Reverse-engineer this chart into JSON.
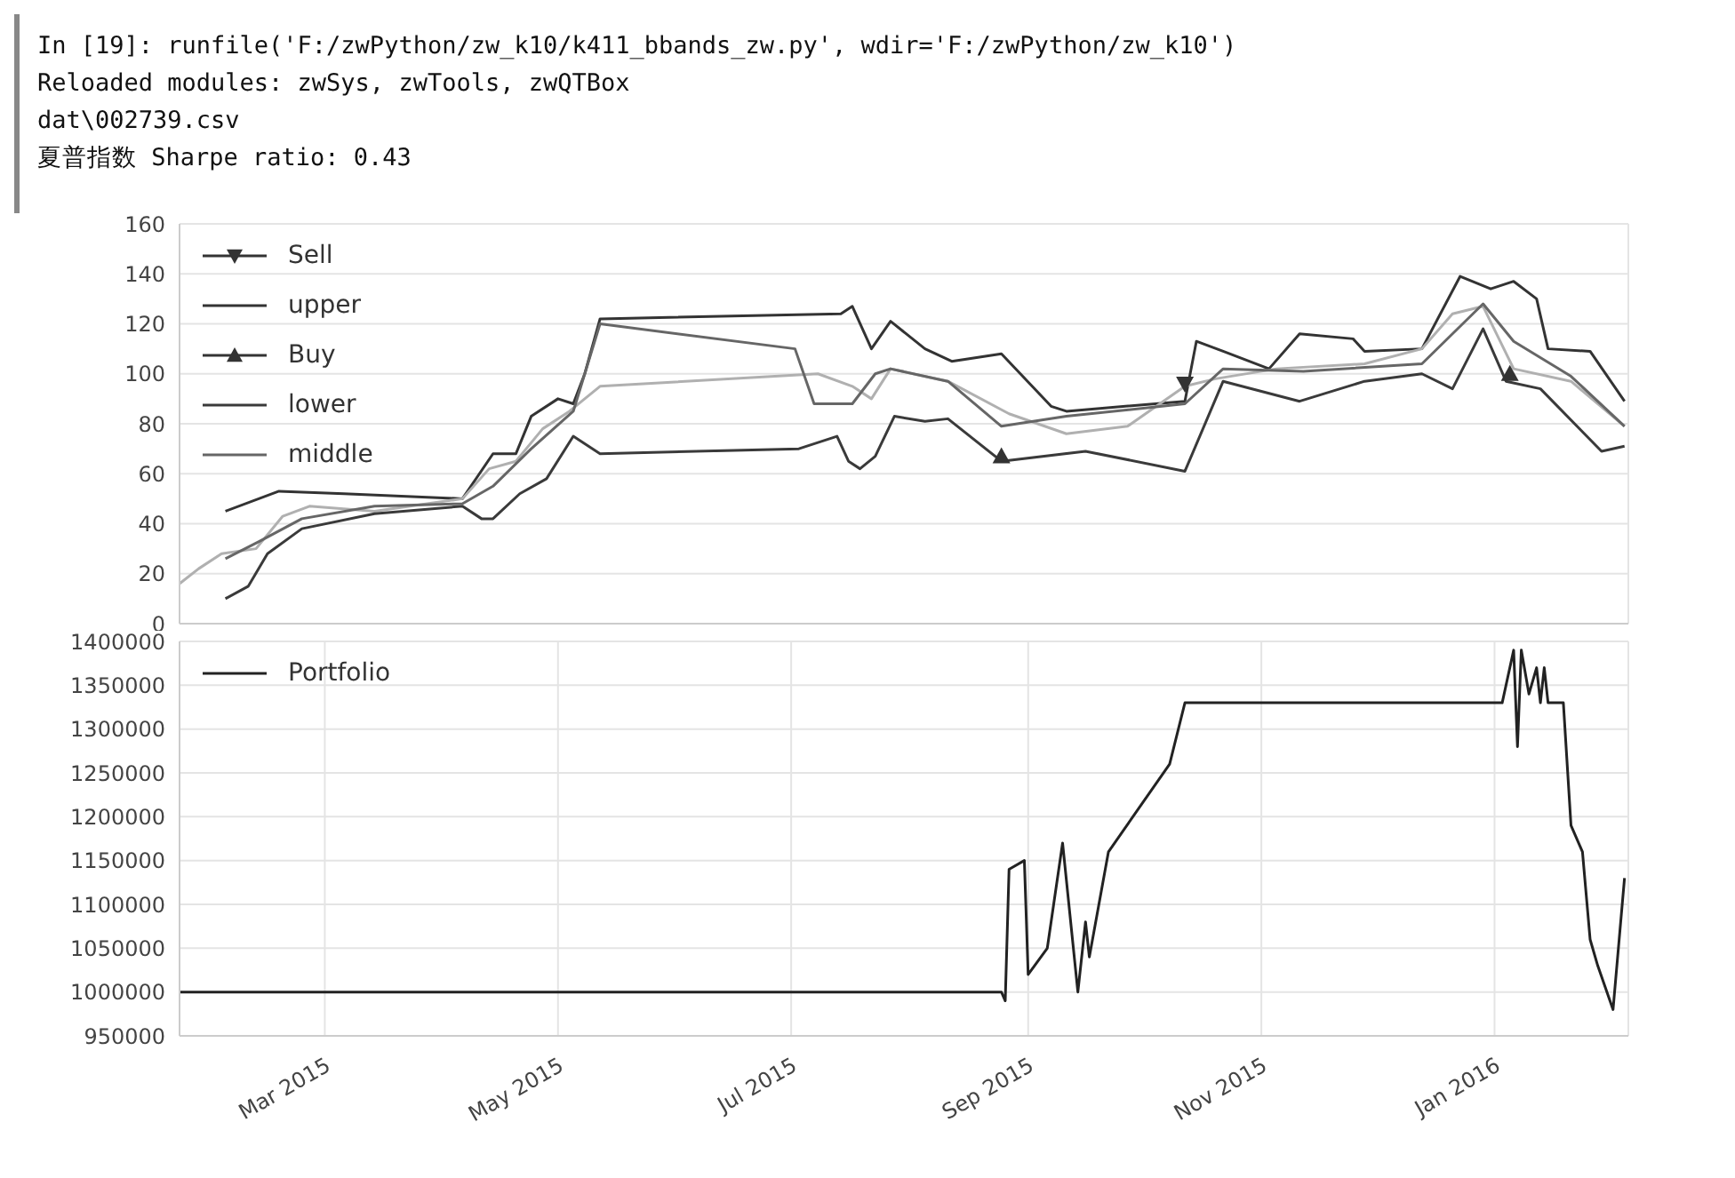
{
  "chart_data": [
    {
      "type": "line",
      "annotations": [
        "In [19]: runfile('F:/zwPython/zw_k10/k411_bbands_zw.py', wdir='F:/zwPython/zw_k10')",
        "Reloaded modules: zwSys, zwTools, zwQTBox",
        "dat\\002739.csv",
        "夏普指数 Sharpe ratio: 0.43"
      ],
      "xlim": [
        "2015-01-22",
        "2016-02-05"
      ],
      "ylim": [
        0,
        160
      ],
      "yticks": [
        0,
        20,
        40,
        60,
        80,
        100,
        120,
        140,
        160
      ],
      "xticks": [
        {
          "value": "2015-03-01",
          "label": null
        },
        {
          "value": "2015-05-01",
          "label": null
        },
        {
          "value": "2015-07-01",
          "label": null
        },
        {
          "value": "2015-09-01",
          "label": null
        },
        {
          "value": "2015-11-01",
          "label": null
        },
        {
          "value": "2016-01-01",
          "label": null
        }
      ],
      "tick_labels": "y",
      "grid": true,
      "legend": "top left",
      "series": [
        {
          "name": "Sell",
          "type": "scatter",
          "marker": "triangle_down",
          "color": "#333333",
          "x": [
            "2015-10-12"
          ],
          "values": [
            96
          ]
        },
        {
          "name": "upper",
          "color": "#333333",
          "x": [
            "2015-02-03",
            "2015-02-17",
            "2015-03-06",
            "2015-04-06",
            "2015-04-14",
            "2015-04-20",
            "2015-04-24",
            "2015-05-01",
            "2015-05-05",
            "2015-05-08",
            "2015-05-12",
            "2015-07-14",
            "2015-07-17",
            "2015-07-22",
            "2015-07-27",
            "2015-08-05",
            "2015-08-12",
            "2015-08-25",
            "2015-09-07",
            "2015-09-11",
            "2015-10-12",
            "2015-10-15",
            "2015-10-22",
            "2015-11-03",
            "2015-11-11",
            "2015-11-25",
            "2015-11-28",
            "2015-12-13",
            "2015-12-23",
            "2015-12-31",
            "2016-01-06",
            "2016-01-12",
            "2016-01-15",
            "2016-01-26",
            "2016-02-04"
          ],
          "values": [
            45,
            53,
            52,
            50,
            68,
            68,
            83,
            90,
            88,
            100,
            122,
            124,
            127,
            110,
            121,
            110,
            105,
            108,
            87,
            85,
            89,
            113,
            109,
            102,
            116,
            114,
            109,
            110,
            139,
            134,
            137,
            130,
            110,
            109,
            89
          ]
        },
        {
          "color": "#b0b0b0",
          "x": [
            "2015-01-22",
            "2015-01-27",
            "2015-02-02",
            "2015-02-11",
            "2015-02-18",
            "2015-02-25",
            "2015-03-14",
            "2015-04-06",
            "2015-04-13",
            "2015-04-20",
            "2015-04-27",
            "2015-05-04",
            "2015-05-12",
            "2015-07-08",
            "2015-07-17",
            "2015-07-22",
            "2015-07-27",
            "2015-08-11",
            "2015-08-27",
            "2015-09-11",
            "2015-09-27",
            "2015-10-12",
            "2015-10-20",
            "2015-11-05",
            "2015-11-28",
            "2015-12-13",
            "2015-12-21",
            "2015-12-29",
            "2016-01-06",
            "2016-01-21",
            "2016-02-04"
          ],
          "values": [
            16,
            22,
            28,
            30,
            43,
            47,
            45,
            50,
            62,
            65,
            78,
            85,
            95,
            100,
            95,
            90,
            102,
            97,
            84,
            76,
            79,
            95,
            98,
            102,
            104,
            110,
            124,
            127,
            102,
            97,
            79
          ]
        },
        {
          "name": "Buy",
          "type": "scatter",
          "marker": "triangle",
          "color": "#333333",
          "x": [
            "2015-08-25",
            "2016-01-05"
          ],
          "values": [
            67,
            100
          ]
        },
        {
          "name": "lower",
          "color": "#3a3a3a",
          "x": [
            "2015-02-03",
            "2015-02-09",
            "2015-02-14",
            "2015-02-23",
            "2015-03-14",
            "2015-04-06",
            "2015-04-11",
            "2015-04-14",
            "2015-04-21",
            "2015-04-28",
            "2015-05-05",
            "2015-05-12",
            "2015-07-03",
            "2015-07-13",
            "2015-07-16",
            "2015-07-19",
            "2015-07-23",
            "2015-07-28",
            "2015-08-05",
            "2015-08-11",
            "2015-08-25",
            "2015-09-16",
            "2015-10-12",
            "2015-10-22",
            "2015-11-11",
            "2015-11-28",
            "2015-12-13",
            "2015-12-21",
            "2015-12-29",
            "2016-01-04",
            "2016-01-13",
            "2016-01-29",
            "2016-02-04"
          ],
          "values": [
            10,
            15,
            28,
            38,
            44,
            47,
            42,
            42,
            52,
            58,
            75,
            68,
            70,
            75,
            65,
            62,
            67,
            83,
            81,
            82,
            65,
            69,
            61,
            97,
            89,
            97,
            100,
            94,
            118,
            97,
            94,
            69,
            71
          ]
        },
        {
          "name": "middle",
          "color": "#666666",
          "x": [
            "2015-02-03",
            "2015-02-12",
            "2015-02-23",
            "2015-03-14",
            "2015-04-06",
            "2015-04-14",
            "2015-04-24",
            "2015-05-05",
            "2015-05-12",
            "2015-07-02",
            "2015-07-07",
            "2015-07-17",
            "2015-07-23",
            "2015-07-27",
            "2015-08-11",
            "2015-08-25",
            "2015-09-11",
            "2015-10-12",
            "2015-10-22",
            "2015-11-12",
            "2015-12-13",
            "2015-12-29",
            "2016-01-06",
            "2016-01-21",
            "2016-02-04"
          ],
          "values": [
            26,
            33,
            42,
            47,
            48,
            55,
            70,
            85,
            120,
            110,
            88,
            88,
            100,
            102,
            97,
            79,
            83,
            88,
            102,
            101,
            104,
            128,
            113,
            99,
            79
          ]
        }
      ]
    },
    {
      "type": "line",
      "xlim": [
        "2015-01-22",
        "2016-02-05"
      ],
      "ylim": [
        950000,
        1400000
      ],
      "yticks": [
        950000,
        1000000,
        1050000,
        1100000,
        1150000,
        1200000,
        1250000,
        1300000,
        1350000,
        1400000
      ],
      "xticks": [
        {
          "value": "2015-03-01",
          "label": "Mar 2015"
        },
        {
          "value": "2015-05-01",
          "label": "May 2015"
        },
        {
          "value": "2015-07-01",
          "label": "Jul 2015"
        },
        {
          "value": "2015-09-01",
          "label": "Sep 2015"
        },
        {
          "value": "2015-11-01",
          "label": "Nov 2015"
        },
        {
          "value": "2016-01-01",
          "label": "Jan 2016"
        }
      ],
      "grid": true,
      "legend": "top left",
      "series": [
        {
          "name": "Portfolio",
          "color": "#222222",
          "x": [
            "2015-01-22",
            "2015-08-25",
            "2015-08-26",
            "2015-08-27",
            "2015-08-31",
            "2015-09-01",
            "2015-09-06",
            "2015-09-10",
            "2015-09-14",
            "2015-09-16",
            "2015-09-17",
            "2015-09-22",
            "2015-10-08",
            "2015-10-12",
            "2016-01-03",
            "2016-01-06",
            "2016-01-07",
            "2016-01-08",
            "2016-01-10",
            "2016-01-12",
            "2016-01-13",
            "2016-01-14",
            "2016-01-15",
            "2016-01-19",
            "2016-01-21",
            "2016-01-24",
            "2016-01-26",
            "2016-01-28",
            "2016-02-01",
            "2016-02-04"
          ],
          "values": [
            1000000,
            1000000,
            990000,
            1140000,
            1150000,
            1020000,
            1050000,
            1170000,
            1000000,
            1080000,
            1040000,
            1160000,
            1260000,
            1330000,
            1330000,
            1390000,
            1280000,
            1390000,
            1340000,
            1370000,
            1330000,
            1370000,
            1330000,
            1330000,
            1190000,
            1160000,
            1060000,
            1030000,
            980000,
            1130000
          ]
        }
      ]
    }
  ]
}
